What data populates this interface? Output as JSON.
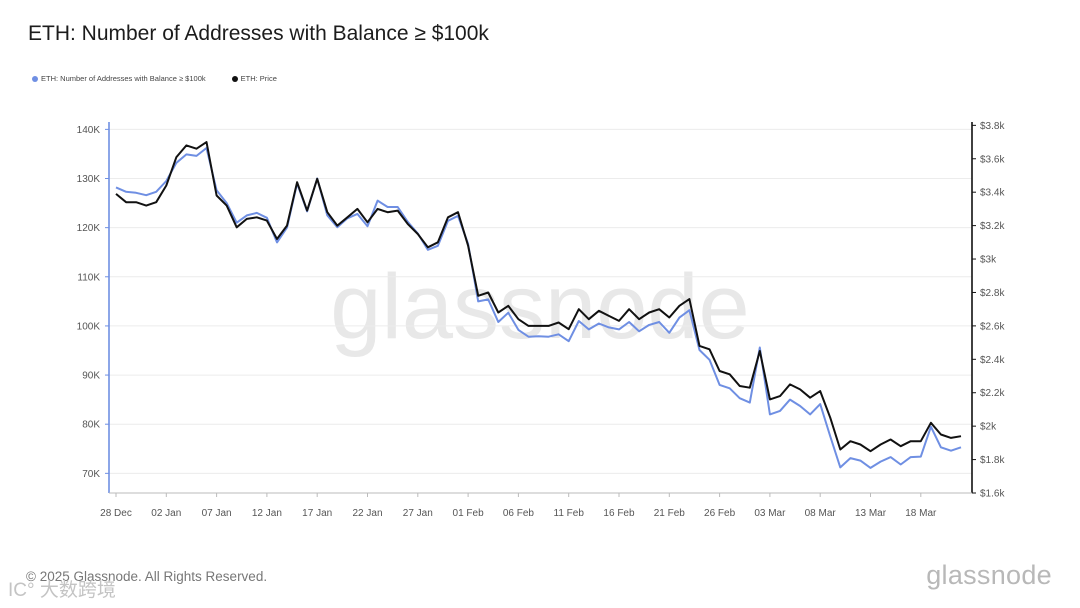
{
  "header": {
    "title": "ETH: Number of Addresses with Balance ≥ $100k"
  },
  "colors": {
    "addresses": "#6f8fe3",
    "price": "#111111",
    "axis_left": "#6f8fe3",
    "axis_right": "#111111",
    "grid": "#ececec",
    "watermark": "#e8e8e8"
  },
  "footer": {
    "copyright": "© 2025 Glassnode. All Rights Reserved.",
    "brand": "glassnode",
    "watermark": "glassnode",
    "overlay_mark": "IC° 大数跨境"
  },
  "chart_data": {
    "type": "line",
    "title": "ETH: Number of Addresses with Balance ≥ $100k",
    "x_tick_labels": [
      "28 Dec",
      "02 Jan",
      "07 Jan",
      "12 Jan",
      "17 Jan",
      "22 Jan",
      "27 Jan",
      "01 Feb",
      "06 Feb",
      "11 Feb",
      "16 Feb",
      "21 Feb",
      "26 Feb",
      "03 Mar",
      "08 Mar",
      "13 Mar",
      "18 Mar"
    ],
    "y_left_ticks": [
      "70K",
      "80K",
      "90K",
      "100K",
      "110K",
      "120K",
      "130K",
      "140K"
    ],
    "y_left_range": [
      66000,
      141500
    ],
    "y_right_ticks": [
      "$1.6k",
      "$1.8k",
      "$2k",
      "$2.2k",
      "$2.4k",
      "$2.6k",
      "$2.8k",
      "$3k",
      "$3.2k",
      "$3.4k",
      "$3.6k",
      "$3.8k"
    ],
    "y_right_range": [
      1600,
      3820
    ],
    "x_start": "2024-12-28",
    "series": [
      {
        "name": "ETH: Number of Addresses with Balance ≥ $100k",
        "axis": "left",
        "values": [
          128200,
          127300,
          127100,
          126600,
          127300,
          129500,
          133200,
          134900,
          134600,
          136200,
          127600,
          125000,
          121000,
          122500,
          123000,
          122000,
          117000,
          120000,
          129000,
          123300,
          130000,
          122500,
          120100,
          121900,
          122800,
          120300,
          125500,
          124200,
          124200,
          121200,
          118800,
          115500,
          116300,
          121400,
          122400,
          116700,
          105000,
          105400,
          100800,
          102700,
          99200,
          97800,
          97900,
          97800,
          98300,
          96900,
          101000,
          99300,
          100500,
          99700,
          99300,
          100800,
          98900,
          100200,
          100800,
          98600,
          101700,
          103200,
          95100,
          93100,
          88000,
          87300,
          85300,
          84400,
          95600,
          82000,
          82700,
          85000,
          83700,
          82000,
          84100,
          77500,
          71200,
          73100,
          72600,
          71100,
          72400,
          73300,
          71800,
          73300,
          73400,
          79500,
          75300,
          74600,
          75300
        ],
        "legend_label": "ETH: Number of Addresses with Balance ≥ $100k"
      },
      {
        "name": "ETH: Price",
        "axis": "right",
        "values": [
          3390,
          3340,
          3340,
          3320,
          3340,
          3440,
          3610,
          3680,
          3660,
          3700,
          3380,
          3320,
          3190,
          3240,
          3250,
          3230,
          3120,
          3200,
          3460,
          3290,
          3480,
          3280,
          3200,
          3250,
          3300,
          3220,
          3300,
          3280,
          3290,
          3210,
          3150,
          3070,
          3100,
          3250,
          3280,
          3080,
          2780,
          2800,
          2680,
          2720,
          2640,
          2600,
          2600,
          2600,
          2620,
          2580,
          2700,
          2640,
          2690,
          2660,
          2630,
          2700,
          2640,
          2680,
          2700,
          2650,
          2720,
          2760,
          2480,
          2460,
          2330,
          2310,
          2240,
          2230,
          2450,
          2160,
          2180,
          2250,
          2220,
          2170,
          2210,
          2050,
          1860,
          1910,
          1890,
          1850,
          1890,
          1920,
          1880,
          1910,
          1910,
          2020,
          1950,
          1930,
          1940
        ],
        "legend_label": "ETH: Price"
      }
    ]
  }
}
